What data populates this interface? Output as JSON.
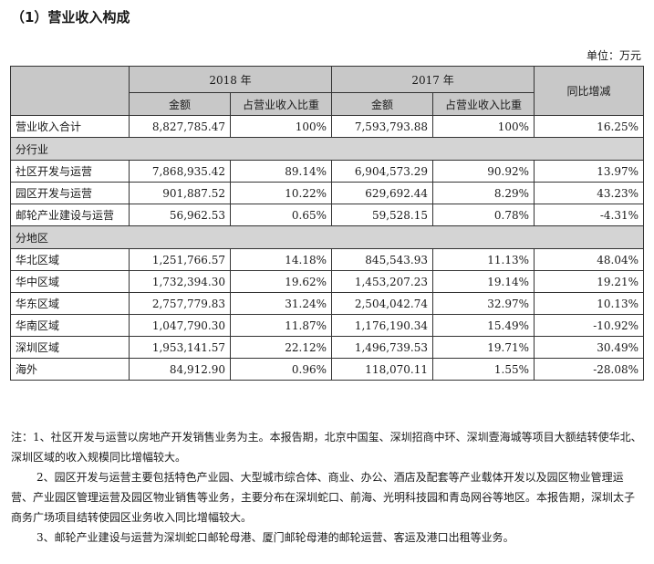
{
  "title": "（1）营业收入构成",
  "unit": "单位：万元",
  "header": {
    "year_a": "2018 年",
    "year_b": "2017 年",
    "amount": "金额",
    "ratio": "占营业收入比重",
    "yoy": "同比增减"
  },
  "total_row": {
    "label": "营业收入合计",
    "a_amt": "8,827,785.47",
    "a_pct": "100%",
    "b_amt": "7,593,793.88",
    "b_pct": "100%",
    "yoy": "16.25%"
  },
  "industry": {
    "label": "分行业",
    "rows": [
      {
        "label": "社区开发与运营",
        "a_amt": "7,868,935.42",
        "a_pct": "89.14%",
        "b_amt": "6,904,573.29",
        "b_pct": "90.92%",
        "yoy": "13.97%"
      },
      {
        "label": "园区开发与运营",
        "a_amt": "901,887.52",
        "a_pct": "10.22%",
        "b_amt": "629,692.44",
        "b_pct": "8.29%",
        "yoy": "43.23%"
      },
      {
        "label": "邮轮产业建设与运营",
        "a_amt": "56,962.53",
        "a_pct": "0.65%",
        "b_amt": "59,528.15",
        "b_pct": "0.78%",
        "yoy": "-4.31%"
      }
    ]
  },
  "region": {
    "label": "分地区",
    "rows": [
      {
        "label": "华北区域",
        "a_amt": "1,251,766.57",
        "a_pct": "14.18%",
        "b_amt": "845,543.93",
        "b_pct": "11.13%",
        "yoy": "48.04%"
      },
      {
        "label": "华中区域",
        "a_amt": "1,732,394.30",
        "a_pct": "19.62%",
        "b_amt": "1,453,207.23",
        "b_pct": "19.14%",
        "yoy": "19.21%"
      },
      {
        "label": "华东区域",
        "a_amt": "2,757,779.83",
        "a_pct": "31.24%",
        "b_amt": "2,504,042.74",
        "b_pct": "32.97%",
        "yoy": "10.13%"
      },
      {
        "label": "华南区域",
        "a_amt": "1,047,790.30",
        "a_pct": "11.87%",
        "b_amt": "1,176,190.34",
        "b_pct": "15.49%",
        "yoy": "-10.92%"
      },
      {
        "label": "深圳区域",
        "a_amt": "1,953,141.57",
        "a_pct": "22.12%",
        "b_amt": "1,496,739.53",
        "b_pct": "19.71%",
        "yoy": "30.49%"
      },
      {
        "label": "海外",
        "a_amt": "84,912.90",
        "a_pct": "0.96%",
        "b_amt": "118,070.11",
        "b_pct": "1.55%",
        "yoy": "-28.08%"
      }
    ]
  },
  "notes": [
    "注：1、社区开发与运营以房地产开发销售业务为主。本报告期，北京中国玺、深圳招商中环、深圳壹海城等项目大额结转使华北、深圳区域的收入规模同比增幅较大。",
    "2、园区开发与运营主要包括特色产业园、大型城市综合体、商业、办公、酒店及配套等产业载体开发以及园区物业管理运营、产业园区管理运营及园区物业销售等业务，主要分布在深圳蛇口、前海、光明科技园和青岛网谷等地区。本报告期，深圳太子商务广场项目结转使园区业务收入同比增幅较大。",
    "3、邮轮产业建设与运营为深圳蛇口邮轮母港、厦门邮轮母港的邮轮运营、客运及港口出租等业务。"
  ]
}
